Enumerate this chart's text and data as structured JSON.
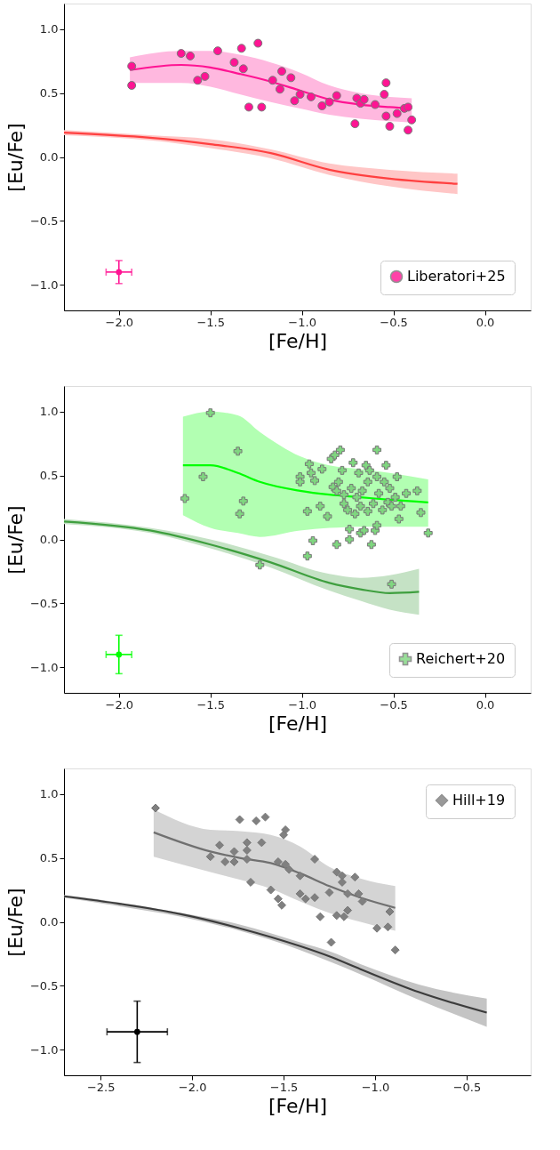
{
  "chart_data": [
    {
      "type": "scatter",
      "xlabel": "[Fe/H]",
      "ylabel": "[Eu/Fe]",
      "xlim": [
        -2.3,
        0.25
      ],
      "ylim": [
        -1.2,
        1.2
      ],
      "xticks": [
        {
          "value": -2.0,
          "label": "−2.0"
        },
        {
          "value": -1.5,
          "label": "−1.5"
        },
        {
          "value": -1.0,
          "label": "−1.0"
        },
        {
          "value": -0.5,
          "label": "−0.5"
        },
        {
          "value": 0.0,
          "label": "0.0"
        }
      ],
      "yticks": [
        {
          "value": 1.0,
          "label": "1.0"
        },
        {
          "value": 0.5,
          "label": "0.5"
        },
        {
          "value": 0.0,
          "label": "0.0"
        },
        {
          "value": -0.5,
          "label": "−0.5"
        },
        {
          "value": -1.0,
          "label": "−1.0"
        }
      ],
      "grid": false,
      "legend": "bottom right",
      "series": [
        {
          "type": "line",
          "color": "#ff4040",
          "x": [
            -2.3,
            -1.83,
            -1.5,
            -1.17,
            -0.85,
            -0.52,
            -0.15
          ],
          "values": [
            0.19,
            0.15,
            0.1,
            0.03,
            -0.1,
            -0.17,
            -0.21
          ],
          "upper": [
            0.21,
            0.17,
            0.14,
            0.06,
            -0.05,
            -0.1,
            -0.13
          ],
          "lower": [
            0.17,
            0.13,
            0.07,
            -0.01,
            -0.14,
            -0.23,
            -0.29
          ]
        },
        {
          "type": "line",
          "color": "#ff1493",
          "x": [
            -1.94,
            -1.66,
            -1.5,
            -1.34,
            -1.17,
            -1.01,
            -0.85,
            -0.68,
            -0.52,
            -0.4
          ],
          "values": [
            0.68,
            0.72,
            0.7,
            0.65,
            0.59,
            0.52,
            0.45,
            0.41,
            0.39,
            0.38
          ],
          "upper": [
            0.78,
            0.83,
            0.83,
            0.8,
            0.74,
            0.66,
            0.56,
            0.5,
            0.47,
            0.46
          ],
          "lower": [
            0.58,
            0.58,
            0.55,
            0.49,
            0.43,
            0.38,
            0.33,
            0.3,
            0.28,
            0.27
          ]
        },
        {
          "name": "Liberatori+25",
          "color": "#ff1493",
          "x": [
            -1.93,
            -1.93,
            -1.66,
            -1.61,
            -1.57,
            -1.53,
            -1.46,
            -1.37,
            -1.33,
            -1.32,
            -1.29,
            -1.24,
            -1.22,
            -1.16,
            -1.12,
            -1.11,
            -1.06,
            -1.04,
            -1.01,
            -0.95,
            -0.89,
            -0.85,
            -0.81,
            -0.71,
            -0.7,
            -0.68,
            -0.66,
            -0.6,
            -0.55,
            -0.54,
            -0.54,
            -0.52,
            -0.48,
            -0.44,
            -0.42,
            -0.42,
            -0.4
          ],
          "values": [
            0.71,
            0.56,
            0.81,
            0.79,
            0.6,
            0.63,
            0.83,
            0.74,
            0.85,
            0.69,
            0.39,
            0.89,
            0.39,
            0.6,
            0.53,
            0.67,
            0.62,
            0.44,
            0.49,
            0.47,
            0.4,
            0.43,
            0.48,
            0.26,
            0.46,
            0.42,
            0.45,
            0.41,
            0.49,
            0.58,
            0.32,
            0.24,
            0.34,
            0.38,
            0.39,
            0.21,
            0.29
          ]
        },
        {
          "color": "#ff1493",
          "marker": "none",
          "x": [
            -2.0
          ],
          "values": [
            -0.9
          ],
          "errors": [
            0.09
          ],
          "xerrors": [
            0.07
          ]
        }
      ]
    },
    {
      "type": "scatter",
      "xlabel": "[Fe/H]",
      "ylabel": "[Eu/Fe]",
      "xlim": [
        -2.3,
        0.25
      ],
      "ylim": [
        -1.2,
        1.2
      ],
      "xticks": [
        {
          "value": -2.0,
          "label": "−2.0"
        },
        {
          "value": -1.5,
          "label": "−1.5"
        },
        {
          "value": -1.0,
          "label": "−1.0"
        },
        {
          "value": -0.5,
          "label": "−0.5"
        },
        {
          "value": 0.0,
          "label": "0.0"
        }
      ],
      "yticks": [
        {
          "value": 1.0,
          "label": "1.0"
        },
        {
          "value": 0.5,
          "label": "0.5"
        },
        {
          "value": 0.0,
          "label": "0.0"
        },
        {
          "value": -0.5,
          "label": "−0.5"
        },
        {
          "value": -1.0,
          "label": "−1.0"
        }
      ],
      "grid": false,
      "legend": "bottom right",
      "series": [
        {
          "type": "line",
          "color": "#3f9f3f",
          "x": [
            -2.3,
            -1.83,
            -1.5,
            -1.17,
            -0.85,
            -0.68,
            -0.52,
            -0.36
          ],
          "values": [
            0.14,
            0.07,
            -0.04,
            -0.18,
            -0.34,
            -0.39,
            -0.42,
            -0.41
          ],
          "upper": [
            0.16,
            0.09,
            0.0,
            -0.13,
            -0.27,
            -0.3,
            -0.28,
            -0.23
          ],
          "lower": [
            0.12,
            0.05,
            -0.07,
            -0.22,
            -0.4,
            -0.48,
            -0.55,
            -0.59
          ]
        },
        {
          "type": "line",
          "color": "#00ff00",
          "x": [
            -1.65,
            -1.5,
            -1.35,
            -1.23,
            -1.01,
            -0.85,
            -0.68,
            -0.52,
            -0.31
          ],
          "values": [
            0.58,
            0.58,
            0.52,
            0.45,
            0.38,
            0.35,
            0.33,
            0.31,
            0.29
          ],
          "upper": [
            0.96,
            1.0,
            0.97,
            0.84,
            0.65,
            0.58,
            0.55,
            0.52,
            0.47
          ],
          "lower": [
            0.19,
            0.09,
            0.05,
            0.02,
            0.07,
            0.09,
            0.1,
            0.1,
            0.1
          ]
        },
        {
          "name": "Reichert+20",
          "color": "#7fd67f",
          "marker": "cross",
          "x": [
            -1.64,
            -1.54,
            -1.5,
            -1.35,
            -1.32,
            -1.34,
            -1.23,
            -1.01,
            -1.01,
            -0.97,
            -0.97,
            -0.96,
            -0.95,
            -0.94,
            -0.93,
            -0.9,
            -0.89,
            -0.86,
            -0.84,
            -0.82,
            -0.81,
            -0.79,
            -0.83,
            -0.81,
            -0.8,
            -0.78,
            -0.77,
            -0.77,
            -0.75,
            -0.74,
            -0.74,
            -0.73,
            -0.72,
            -0.71,
            -0.7,
            -0.69,
            -0.68,
            -0.68,
            -0.67,
            -0.66,
            -0.65,
            -0.64,
            -0.64,
            -0.63,
            -0.62,
            -0.61,
            -0.6,
            -0.59,
            -0.59,
            -0.59,
            -0.58,
            -0.56,
            -0.55,
            -0.54,
            -0.53,
            -0.52,
            -0.51,
            -0.51,
            -0.49,
            -0.48,
            -0.47,
            -0.46,
            -0.43,
            -0.37,
            -0.35,
            -0.31
          ],
          "values": [
            0.32,
            0.49,
            0.99,
            0.69,
            0.3,
            0.2,
            -0.2,
            0.49,
            0.45,
            -0.13,
            0.22,
            0.59,
            0.52,
            -0.01,
            0.46,
            0.26,
            0.55,
            0.18,
            0.63,
            0.66,
            -0.04,
            0.7,
            0.41,
            0.38,
            0.45,
            0.54,
            0.28,
            0.35,
            0.23,
            0.08,
            0.0,
            0.4,
            0.6,
            0.2,
            0.33,
            0.52,
            0.05,
            0.26,
            0.38,
            0.07,
            0.58,
            0.22,
            0.45,
            0.54,
            -0.04,
            0.28,
            0.07,
            0.49,
            0.7,
            0.11,
            0.36,
            0.23,
            0.45,
            0.58,
            0.29,
            0.4,
            -0.35,
            0.26,
            0.33,
            0.49,
            0.16,
            0.26,
            0.36,
            0.38,
            0.21,
            0.05
          ]
        },
        {
          "color": "#00ff00",
          "marker": "none",
          "x": [
            -2.0
          ],
          "values": [
            -0.9
          ],
          "errors": [
            0.15
          ],
          "xerrors": [
            0.07
          ]
        }
      ]
    },
    {
      "type": "scatter",
      "xlabel": "[Fe/H]",
      "ylabel": "[Eu/Fe]",
      "xlim": [
        -2.7,
        -0.15
      ],
      "ylim": [
        -1.2,
        1.2
      ],
      "xticks": [
        {
          "value": -2.5,
          "label": "−2.5"
        },
        {
          "value": -2.0,
          "label": "−2.0"
        },
        {
          "value": -1.5,
          "label": "−1.5"
        },
        {
          "value": -1.0,
          "label": "−1.0"
        },
        {
          "value": -0.5,
          "label": "−0.5"
        }
      ],
      "yticks": [
        {
          "value": 1.0,
          "label": "1.0"
        },
        {
          "value": 0.5,
          "label": "0.5"
        },
        {
          "value": 0.0,
          "label": "0.0"
        },
        {
          "value": -0.5,
          "label": "−0.5"
        },
        {
          "value": -1.0,
          "label": "−1.0"
        }
      ],
      "grid": false,
      "legend": "top right",
      "series": [
        {
          "type": "line",
          "color": "#3c3c3c",
          "x": [
            -2.7,
            -2.39,
            -2.06,
            -1.74,
            -1.41,
            -1.25,
            -1.08,
            -0.76,
            -0.39
          ],
          "values": [
            0.2,
            0.14,
            0.06,
            -0.05,
            -0.19,
            -0.27,
            -0.37,
            -0.55,
            -0.71
          ],
          "upper": [
            0.21,
            0.15,
            0.07,
            -0.02,
            -0.16,
            -0.23,
            -0.33,
            -0.49,
            -0.6
          ],
          "lower": [
            0.19,
            0.12,
            0.04,
            -0.07,
            -0.22,
            -0.31,
            -0.41,
            -0.61,
            -0.82
          ]
        },
        {
          "type": "line",
          "color": "#707070",
          "x": [
            -2.21,
            -1.9,
            -1.74,
            -1.57,
            -1.41,
            -1.25,
            -1.08,
            -0.89
          ],
          "values": [
            0.7,
            0.55,
            0.5,
            0.46,
            0.38,
            0.28,
            0.19,
            0.11
          ],
          "upper": [
            0.88,
            0.72,
            0.71,
            0.68,
            0.59,
            0.43,
            0.34,
            0.28
          ],
          "lower": [
            0.51,
            0.39,
            0.33,
            0.26,
            0.16,
            0.07,
            0.0,
            -0.07
          ]
        },
        {
          "name": "Hill+19",
          "color": "#808080",
          "marker": "diamond",
          "x": [
            -2.2,
            -1.74,
            -1.65,
            -1.6,
            -1.49,
            -1.5,
            -1.85,
            -1.9,
            -1.77,
            -1.82,
            -1.77,
            -1.7,
            -1.7,
            -1.7,
            -1.62,
            -1.68,
            -1.57,
            -1.53,
            -1.49,
            -1.47,
            -1.53,
            -1.51,
            -1.41,
            -1.41,
            -1.38,
            -1.33,
            -1.33,
            -1.3,
            -1.25,
            -1.24,
            -1.21,
            -1.21,
            -1.18,
            -1.18,
            -1.17,
            -1.15,
            -1.15,
            -1.11,
            -1.09,
            -1.07,
            -0.99,
            -0.93,
            -0.92,
            -0.89
          ],
          "values": [
            0.89,
            0.8,
            0.79,
            0.82,
            0.72,
            0.68,
            0.6,
            0.51,
            0.55,
            0.47,
            0.47,
            0.62,
            0.56,
            0.49,
            0.62,
            0.31,
            0.25,
            0.47,
            0.45,
            0.41,
            0.18,
            0.13,
            0.36,
            0.22,
            0.18,
            0.49,
            0.19,
            0.04,
            0.23,
            -0.16,
            0.39,
            0.05,
            0.36,
            0.31,
            0.04,
            0.22,
            0.09,
            0.35,
            0.22,
            0.16,
            -0.05,
            -0.04,
            0.08,
            -0.22
          ]
        },
        {
          "color": "#000000",
          "marker": "none",
          "x": [
            -2.3
          ],
          "values": [
            -0.86
          ],
          "errors": [
            0.24
          ],
          "xerrors": [
            0.165
          ]
        }
      ]
    }
  ]
}
